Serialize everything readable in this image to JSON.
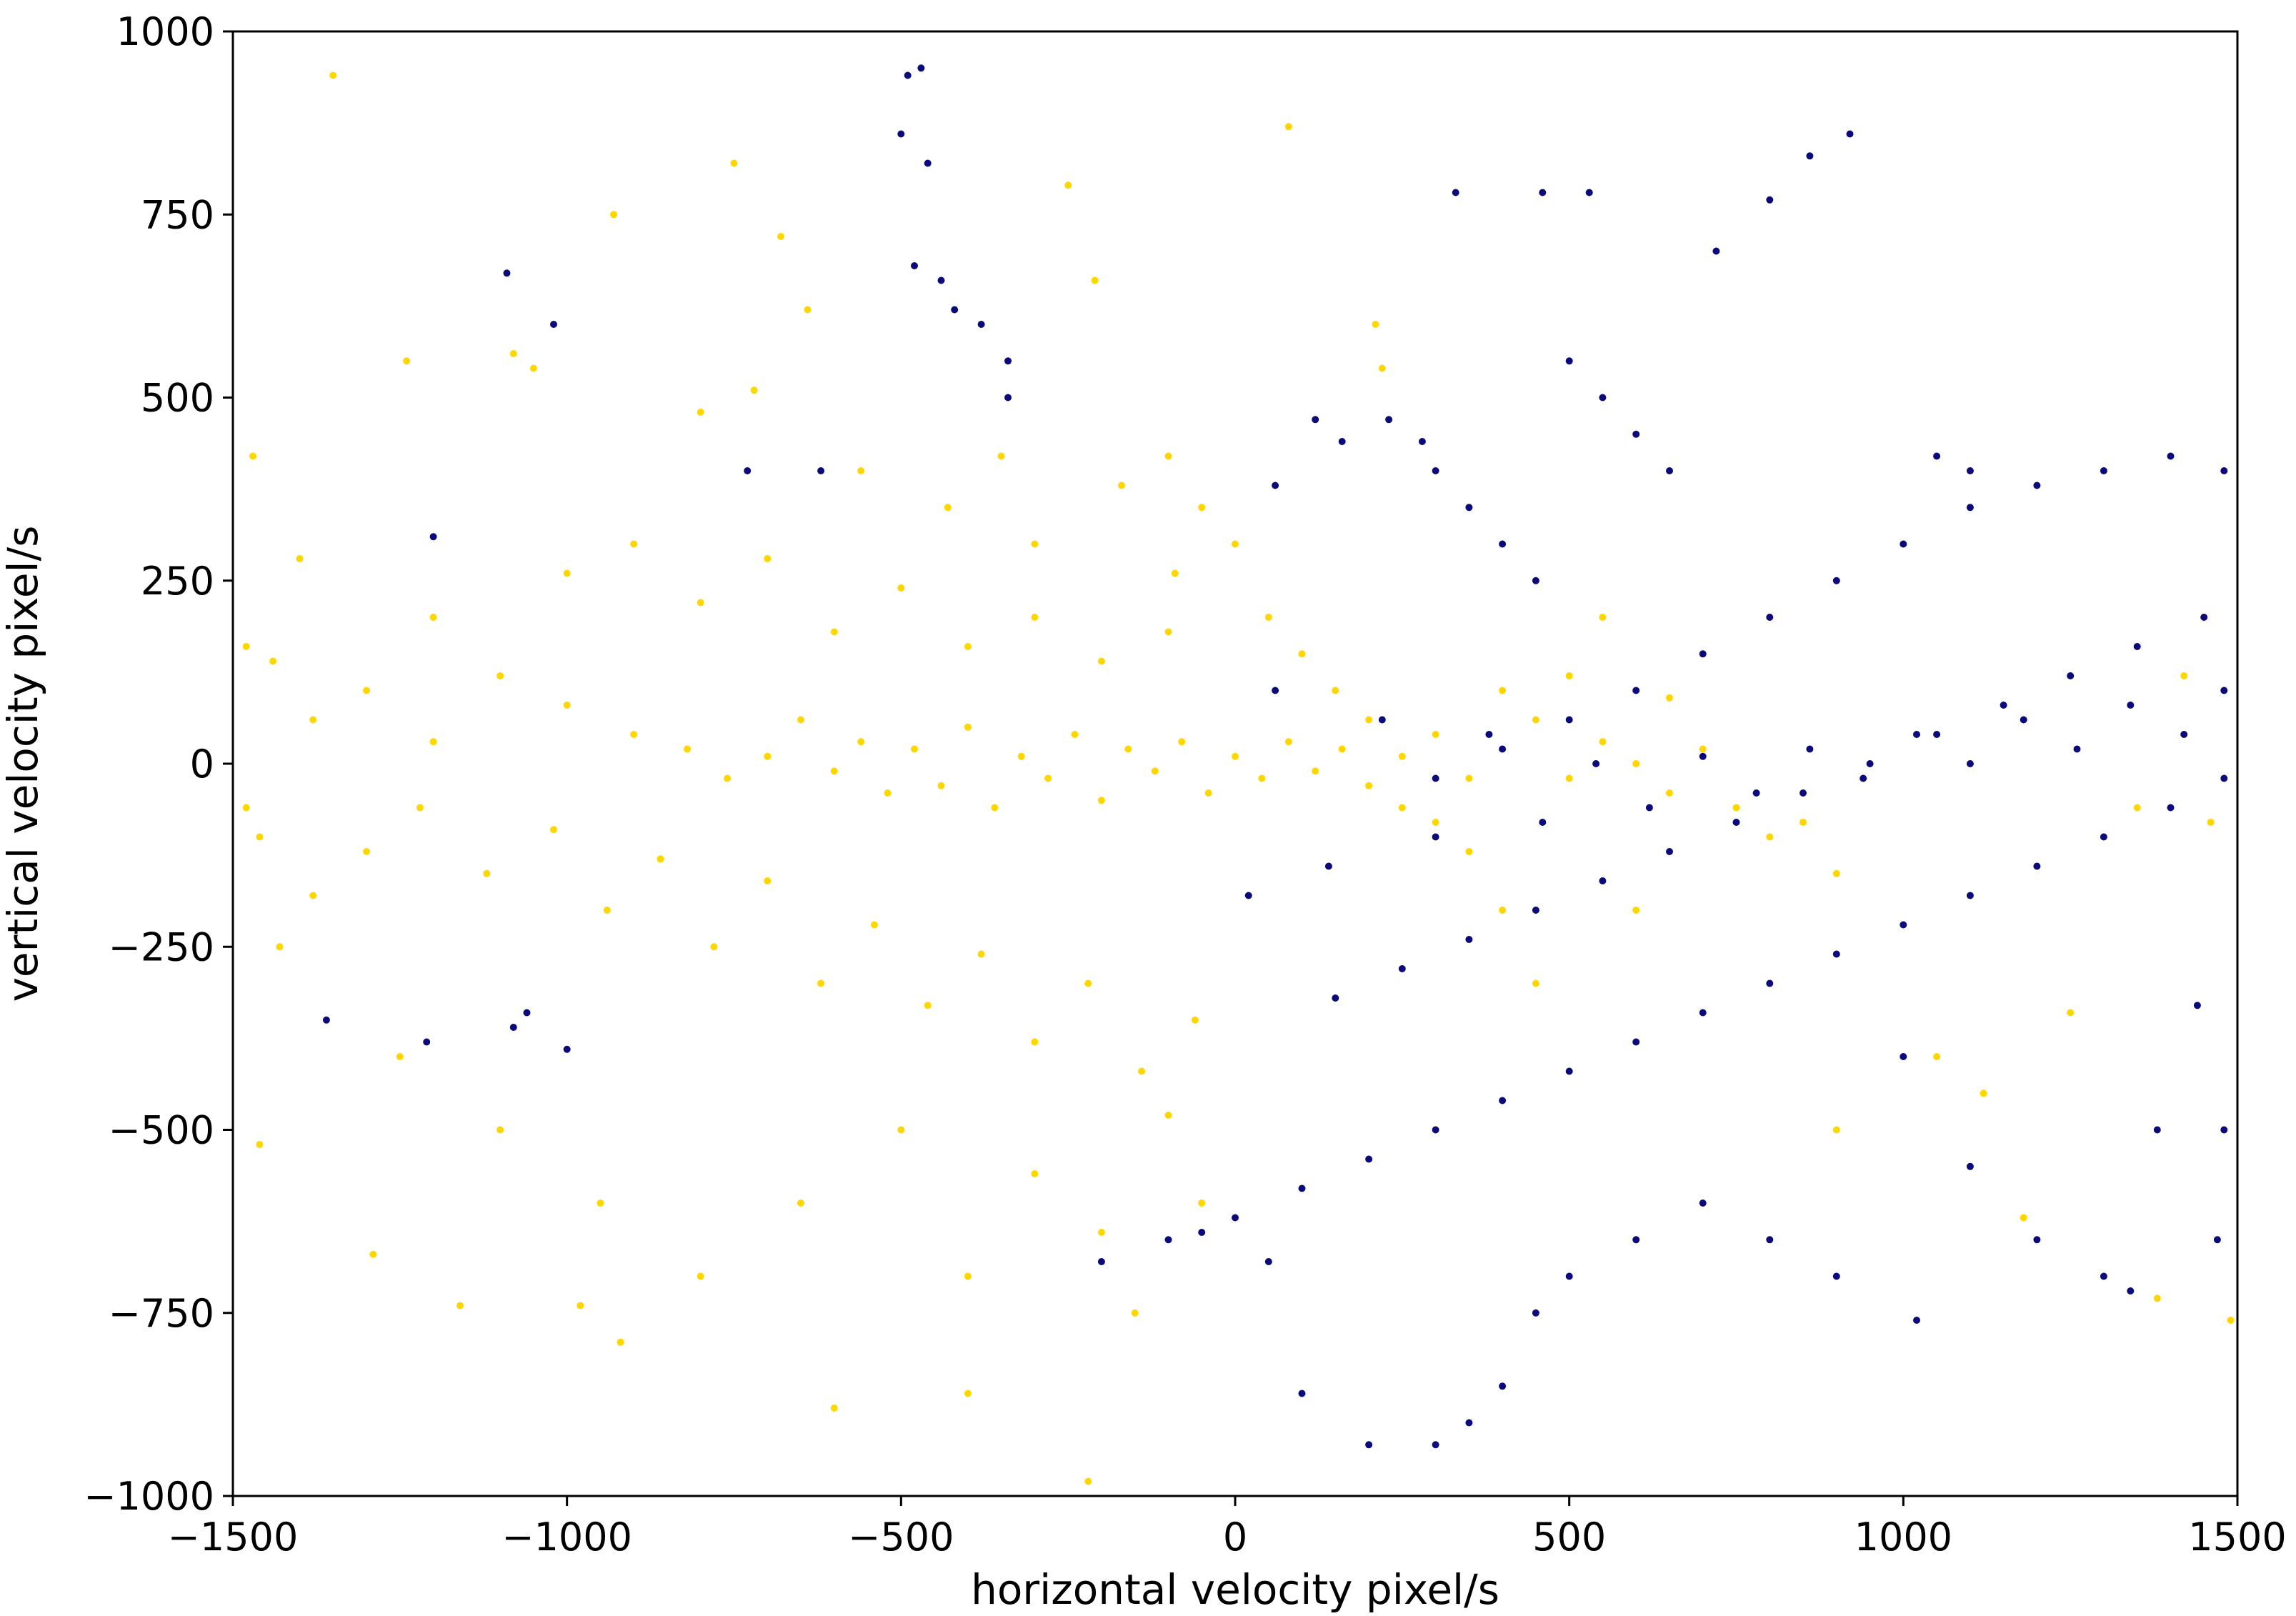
{
  "chart_data": {
    "type": "scatter",
    "title": "",
    "xlabel": "horizontal velocity pixel/s",
    "ylabel": "vertical velocity pixel/s",
    "xlim": [
      -1500,
      1500
    ],
    "ylim": [
      -1000,
      1000
    ],
    "xticks": [
      -1500,
      -1000,
      -500,
      0,
      500,
      1000,
      1500
    ],
    "yticks": [
      -1000,
      -750,
      -500,
      -250,
      0,
      250,
      500,
      750,
      1000
    ],
    "xtick_labels": [
      "−1500",
      "−1000",
      "−500",
      "0",
      "500",
      "1000",
      "1500"
    ],
    "ytick_labels": [
      "−1000",
      "−750",
      "−500",
      "−250",
      "0",
      "250",
      "500",
      "750",
      "1000"
    ],
    "grid": false,
    "legend": "none",
    "series": [
      {
        "color": "#ffd700",
        "points": [
          [
            -1350,
            940
          ],
          [
            -750,
            820
          ],
          [
            -930,
            750
          ],
          [
            -680,
            720
          ],
          [
            -210,
            660
          ],
          [
            80,
            870
          ],
          [
            -250,
            790
          ],
          [
            -1080,
            560
          ],
          [
            -1050,
            540
          ],
          [
            -1240,
            550
          ],
          [
            -640,
            620
          ],
          [
            -720,
            510
          ],
          [
            210,
            600
          ],
          [
            220,
            540
          ],
          [
            -800,
            480
          ],
          [
            -560,
            400
          ],
          [
            -430,
            350
          ],
          [
            -300,
            300
          ],
          [
            -350,
            420
          ],
          [
            -170,
            380
          ],
          [
            -90,
            260
          ],
          [
            -1440,
            140
          ],
          [
            -1380,
            60
          ],
          [
            -1300,
            100
          ],
          [
            -1200,
            30
          ],
          [
            -1100,
            120
          ],
          [
            -1000,
            80
          ],
          [
            -900,
            40
          ],
          [
            -820,
            20
          ],
          [
            -760,
            -20
          ],
          [
            -700,
            10
          ],
          [
            -650,
            60
          ],
          [
            -600,
            -10
          ],
          [
            -560,
            30
          ],
          [
            -520,
            -40
          ],
          [
            -480,
            20
          ],
          [
            -440,
            -30
          ],
          [
            -400,
            50
          ],
          [
            -360,
            -60
          ],
          [
            -320,
            10
          ],
          [
            -280,
            -20
          ],
          [
            -240,
            40
          ],
          [
            -200,
            -50
          ],
          [
            -160,
            20
          ],
          [
            -120,
            -10
          ],
          [
            -80,
            30
          ],
          [
            -40,
            -40
          ],
          [
            0,
            10
          ],
          [
            40,
            -20
          ],
          [
            80,
            30
          ],
          [
            120,
            -10
          ],
          [
            160,
            20
          ],
          [
            200,
            -30
          ],
          [
            250,
            10
          ],
          [
            300,
            40
          ],
          [
            350,
            -20
          ],
          [
            -1460,
            -100
          ],
          [
            -1380,
            -180
          ],
          [
            -1300,
            -120
          ],
          [
            -1220,
            -60
          ],
          [
            -1120,
            -150
          ],
          [
            -1020,
            -90
          ],
          [
            -940,
            -200
          ],
          [
            -860,
            -130
          ],
          [
            -780,
            -250
          ],
          [
            -700,
            -160
          ],
          [
            -620,
            -300
          ],
          [
            -540,
            -220
          ],
          [
            -460,
            -330
          ],
          [
            -380,
            -260
          ],
          [
            -300,
            -380
          ],
          [
            -220,
            -300
          ],
          [
            -140,
            -420
          ],
          [
            -60,
            -350
          ],
          [
            -1400,
            280
          ],
          [
            -1200,
            200
          ],
          [
            -1000,
            260
          ],
          [
            -900,
            300
          ],
          [
            -800,
            220
          ],
          [
            -700,
            280
          ],
          [
            -600,
            180
          ],
          [
            -500,
            240
          ],
          [
            -400,
            160
          ],
          [
            -300,
            200
          ],
          [
            -200,
            140
          ],
          [
            -100,
            180
          ],
          [
            -1250,
            -400
          ],
          [
            -1100,
            -500
          ],
          [
            -950,
            -600
          ],
          [
            -800,
            -700
          ],
          [
            -650,
            -600
          ],
          [
            -500,
            -500
          ],
          [
            -400,
            -700
          ],
          [
            -300,
            -560
          ],
          [
            -200,
            -640
          ],
          [
            -100,
            -480
          ],
          [
            -50,
            -600
          ],
          [
            -150,
            -750
          ],
          [
            -1460,
            -520
          ],
          [
            -1290,
            -670
          ],
          [
            -1160,
            -740
          ],
          [
            -980,
            -740
          ],
          [
            -920,
            -790
          ],
          [
            -600,
            -880
          ],
          [
            -400,
            -860
          ],
          [
            -220,
            -980
          ],
          [
            -1470,
            420
          ],
          [
            -1430,
            -250
          ],
          [
            -1480,
            160
          ],
          [
            -1480,
            -60
          ],
          [
            -100,
            420
          ],
          [
            -50,
            350
          ],
          [
            0,
            300
          ],
          [
            50,
            200
          ],
          [
            100,
            150
          ],
          [
            150,
            100
          ],
          [
            200,
            60
          ],
          [
            400,
            100
          ],
          [
            450,
            60
          ],
          [
            500,
            -20
          ],
          [
            550,
            30
          ],
          [
            600,
            0
          ],
          [
            650,
            -40
          ],
          [
            700,
            20
          ],
          [
            750,
            -60
          ],
          [
            800,
            -100
          ],
          [
            850,
            -80
          ],
          [
            900,
            -150
          ],
          [
            550,
            200
          ],
          [
            700,
            150
          ],
          [
            600,
            -200
          ],
          [
            450,
            -300
          ],
          [
            400,
            -200
          ],
          [
            350,
            -120
          ],
          [
            300,
            -80
          ],
          [
            250,
            -60
          ],
          [
            500,
            120
          ],
          [
            650,
            90
          ],
          [
            1250,
            -340
          ],
          [
            1350,
            -60
          ],
          [
            1420,
            120
          ],
          [
            1460,
            -80
          ],
          [
            1490,
            -760
          ],
          [
            1380,
            -730
          ],
          [
            1120,
            -450
          ],
          [
            900,
            -500
          ],
          [
            1180,
            -620
          ],
          [
            1050,
            -400
          ]
        ]
      },
      {
        "color": "#0a0a7a",
        "points": [
          [
            -490,
            940
          ],
          [
            -470,
            950
          ],
          [
            -1090,
            670
          ],
          [
            -1020,
            600
          ],
          [
            -460,
            820
          ],
          [
            -500,
            860
          ],
          [
            330,
            780
          ],
          [
            460,
            780
          ],
          [
            530,
            780
          ],
          [
            920,
            860
          ],
          [
            860,
            830
          ],
          [
            800,
            770
          ],
          [
            720,
            700
          ],
          [
            1400,
            420
          ],
          [
            1480,
            400
          ],
          [
            1300,
            400
          ],
          [
            1200,
            380
          ],
          [
            1100,
            350
          ],
          [
            1000,
            300
          ],
          [
            900,
            250
          ],
          [
            800,
            200
          ],
          [
            700,
            150
          ],
          [
            600,
            100
          ],
          [
            500,
            60
          ],
          [
            400,
            20
          ],
          [
            300,
            -20
          ],
          [
            1450,
            200
          ],
          [
            1350,
            160
          ],
          [
            1250,
            120
          ],
          [
            1150,
            80
          ],
          [
            1050,
            40
          ],
          [
            950,
            0
          ],
          [
            850,
            -40
          ],
          [
            750,
            -80
          ],
          [
            650,
            -120
          ],
          [
            550,
            -160
          ],
          [
            450,
            -200
          ],
          [
            350,
            -240
          ],
          [
            250,
            -280
          ],
          [
            150,
            -320
          ],
          [
            1480,
            -20
          ],
          [
            1400,
            -60
          ],
          [
            1300,
            -100
          ],
          [
            1200,
            -140
          ],
          [
            1100,
            -180
          ],
          [
            1000,
            -220
          ],
          [
            900,
            -260
          ],
          [
            800,
            -300
          ],
          [
            700,
            -340
          ],
          [
            600,
            -380
          ],
          [
            500,
            -420
          ],
          [
            400,
            -460
          ],
          [
            300,
            -500
          ],
          [
            200,
            -540
          ],
          [
            100,
            -580
          ],
          [
            0,
            -620
          ],
          [
            -100,
            -650
          ],
          [
            -200,
            -680
          ],
          [
            1480,
            100
          ],
          [
            1420,
            40
          ],
          [
            1340,
            80
          ],
          [
            1260,
            20
          ],
          [
            1180,
            60
          ],
          [
            1100,
            0
          ],
          [
            1020,
            40
          ],
          [
            940,
            -20
          ],
          [
            860,
            20
          ],
          [
            780,
            -40
          ],
          [
            700,
            10
          ],
          [
            620,
            -60
          ],
          [
            540,
            0
          ],
          [
            460,
            -80
          ],
          [
            380,
            40
          ],
          [
            300,
            -100
          ],
          [
            220,
            60
          ],
          [
            140,
            -140
          ],
          [
            60,
            100
          ],
          [
            20,
            -180
          ],
          [
            1000,
            -400
          ],
          [
            1100,
            -550
          ],
          [
            1200,
            -650
          ],
          [
            1300,
            -700
          ],
          [
            1340,
            -720
          ],
          [
            1480,
            -500
          ],
          [
            1470,
            -650
          ],
          [
            1440,
            -330
          ],
          [
            1380,
            -500
          ],
          [
            1020,
            -760
          ],
          [
            900,
            -700
          ],
          [
            800,
            -650
          ],
          [
            700,
            -600
          ],
          [
            600,
            -650
          ],
          [
            500,
            -700
          ],
          [
            450,
            -750
          ],
          [
            400,
            -850
          ],
          [
            350,
            -900
          ],
          [
            300,
            -930
          ],
          [
            200,
            -930
          ],
          [
            100,
            -860
          ],
          [
            50,
            -680
          ],
          [
            -50,
            -640
          ],
          [
            230,
            470
          ],
          [
            280,
            440
          ],
          [
            300,
            400
          ],
          [
            350,
            350
          ],
          [
            400,
            300
          ],
          [
            450,
            250
          ],
          [
            500,
            550
          ],
          [
            550,
            500
          ],
          [
            600,
            450
          ],
          [
            650,
            400
          ],
          [
            1050,
            420
          ],
          [
            1100,
            400
          ],
          [
            -1360,
            -350
          ],
          [
            -1210,
            -380
          ],
          [
            -1080,
            -360
          ],
          [
            -1000,
            -390
          ],
          [
            -1060,
            -340
          ],
          [
            -1200,
            310
          ],
          [
            -620,
            400
          ],
          [
            -730,
            400
          ],
          [
            -340,
            550
          ],
          [
            -480,
            680
          ],
          [
            -440,
            660
          ],
          [
            -420,
            620
          ],
          [
            -380,
            600
          ],
          [
            -340,
            500
          ],
          [
            120,
            470
          ],
          [
            160,
            440
          ],
          [
            60,
            380
          ]
        ]
      }
    ]
  }
}
